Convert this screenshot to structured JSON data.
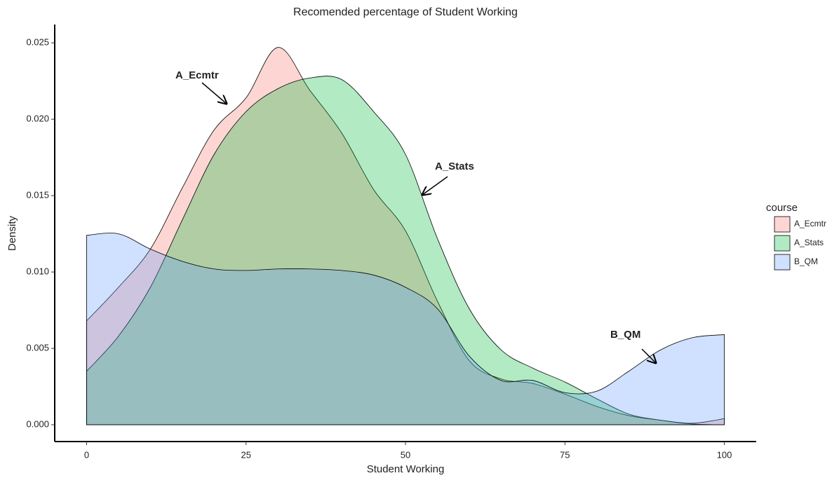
{
  "chart_data": {
    "type": "area",
    "title": "Recomended percentage of Student Working",
    "x_label": "Student Working",
    "y_label": "Density",
    "legend_title": "course",
    "x": [
      0,
      5,
      10,
      15,
      20,
      25,
      30,
      35,
      40,
      45,
      50,
      55,
      60,
      65,
      70,
      75,
      80,
      85,
      90,
      95,
      100
    ],
    "series": [
      {
        "name": "A_Ecmtr",
        "color": "#F8766D",
        "values": [
          0.0068,
          0.009,
          0.0115,
          0.0155,
          0.0193,
          0.0214,
          0.0247,
          0.0219,
          0.0191,
          0.0154,
          0.0127,
          0.0081,
          0.0042,
          0.003,
          0.0027,
          0.002,
          0.0012,
          0.0006,
          0.0003,
          0.0001,
          0.0004
        ]
      },
      {
        "name": "A_Stats",
        "color": "#00BA38",
        "values": [
          0.0035,
          0.0058,
          0.009,
          0.0134,
          0.0177,
          0.0205,
          0.022,
          0.0227,
          0.0226,
          0.0205,
          0.0177,
          0.0122,
          0.0076,
          0.0049,
          0.0037,
          0.0028,
          0.0017,
          0.0007,
          0.0003,
          5e-05,
          0
        ]
      },
      {
        "name": "B_QM",
        "color": "#619CFF",
        "values": [
          0.0124,
          0.0125,
          0.0115,
          0.0107,
          0.0102,
          0.0101,
          0.0102,
          0.0102,
          0.0101,
          0.0098,
          0.009,
          0.0076,
          0.0045,
          0.0029,
          0.0029,
          0.0021,
          0.0022,
          0.0035,
          0.0049,
          0.0057,
          0.0059
        ]
      }
    ],
    "annotations": [
      "A_Ecmtr",
      "A_Stats",
      "B_QM"
    ],
    "xlim": [
      -5,
      105
    ],
    "ylim": [
      -0.0011,
      0.0262
    ],
    "xticks": [
      0,
      25,
      50,
      75,
      100
    ],
    "yticks": [
      {
        "value": 0,
        "label": "0.000"
      },
      {
        "value": 0.005,
        "label": "0.005"
      },
      {
        "value": 0.01,
        "label": "0.010"
      },
      {
        "value": 0.015,
        "label": "0.015"
      },
      {
        "value": 0.02,
        "label": "0.020"
      },
      {
        "value": 0.025,
        "label": "0.025"
      }
    ],
    "grid": false,
    "legend": "right"
  }
}
